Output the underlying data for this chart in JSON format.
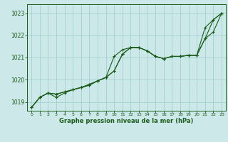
{
  "bg_color": "#cce8e8",
  "grid_color": "#99cccc",
  "line_color": "#1a5c1a",
  "xlabel": "Graphe pression niveau de la mer (hPa)",
  "xlabel_color": "#1a5c1a",
  "ylim": [
    1018.6,
    1023.4
  ],
  "xlim": [
    -0.5,
    23.5
  ],
  "yticks": [
    1019,
    1020,
    1021,
    1022,
    1023
  ],
  "xticks": [
    0,
    1,
    2,
    3,
    4,
    5,
    6,
    7,
    8,
    9,
    10,
    11,
    12,
    13,
    14,
    15,
    16,
    17,
    18,
    19,
    20,
    21,
    22,
    23
  ],
  "series1_x": [
    0,
    1,
    2,
    3,
    4,
    5,
    6,
    7,
    8,
    9,
    10,
    11,
    12,
    13,
    14,
    15,
    16,
    17,
    18,
    19,
    20,
    21,
    22,
    23
  ],
  "series1_y": [
    1018.75,
    1019.2,
    1019.4,
    1019.2,
    1019.4,
    1019.55,
    1019.65,
    1019.75,
    1019.95,
    1020.1,
    1020.4,
    1021.15,
    1021.45,
    1021.45,
    1021.3,
    1021.05,
    1020.95,
    1021.05,
    1021.05,
    1021.1,
    1021.1,
    1022.35,
    1022.7,
    1023.0
  ],
  "series2_x": [
    0,
    1,
    2,
    3,
    4,
    5,
    6,
    7,
    8,
    9,
    10,
    11,
    12,
    13,
    14,
    15,
    16,
    17,
    18,
    19,
    20,
    21,
    22,
    23
  ],
  "series2_y": [
    1018.75,
    1019.2,
    1019.4,
    1019.35,
    1019.45,
    1019.55,
    1019.65,
    1019.75,
    1019.95,
    1020.1,
    1021.05,
    1021.35,
    1021.45,
    1021.45,
    1021.3,
    1021.05,
    1020.95,
    1021.05,
    1021.05,
    1021.1,
    1021.1,
    1021.85,
    1022.15,
    1023.0
  ],
  "series3_x": [
    0,
    1,
    2,
    3,
    4,
    5,
    6,
    7,
    8,
    9,
    10,
    11,
    12,
    13,
    14,
    15,
    16,
    17,
    18,
    19,
    20,
    21,
    22,
    23
  ],
  "series3_y": [
    1018.75,
    1019.2,
    1019.4,
    1019.35,
    1019.45,
    1019.55,
    1019.65,
    1019.8,
    1019.95,
    1020.1,
    1020.4,
    1021.15,
    1021.45,
    1021.45,
    1021.3,
    1021.05,
    1020.95,
    1021.05,
    1021.05,
    1021.1,
    1021.1,
    1021.85,
    1022.7,
    1023.0
  ],
  "figwidth": 3.2,
  "figheight": 2.0,
  "dpi": 100
}
